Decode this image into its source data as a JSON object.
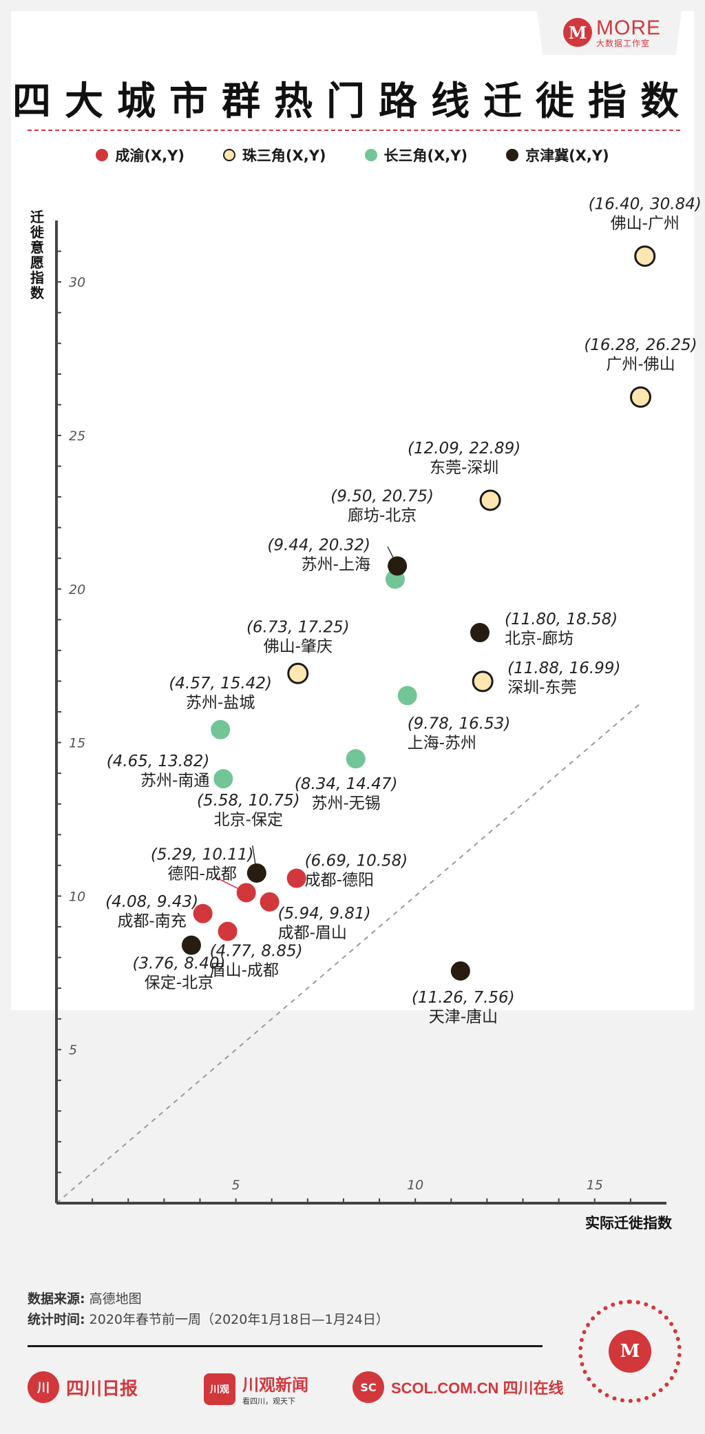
{
  "header": {
    "brand_name": "MORE",
    "brand_sub": "大数据工作室",
    "brand_logo_glyph": "M",
    "title": "四大城市群热门路线迁徙指数"
  },
  "legend": [
    {
      "label": "成渝(X,Y)",
      "color": "#d2373c"
    },
    {
      "label": "珠三角(X,Y)",
      "color": "#fde6b0"
    },
    {
      "label": "长三角(X,Y)",
      "color": "#72c596"
    },
    {
      "label": "京津冀(X,Y)",
      "color": "#261d10"
    }
  ],
  "chart_data": {
    "type": "scatter",
    "title": "四大城市群热门路线迁徙指数",
    "xlabel": "实际迁徙指数",
    "ylabel": "迁徙意愿指数",
    "xlim": [
      0,
      17
    ],
    "ylim": [
      0,
      32
    ],
    "xticks": [
      5,
      10,
      15
    ],
    "yticks": [
      5,
      10,
      15,
      20,
      25,
      30
    ],
    "reference_line": "y = x (dashed)",
    "series": [
      {
        "name": "成渝",
        "color": "#d2373c",
        "points": [
          {
            "route": "成都-德阳",
            "x": 6.69,
            "y": 10.58,
            "label": "(6.69, 10.58)"
          },
          {
            "route": "德阳-成都",
            "x": 5.29,
            "y": 10.11,
            "label": "(5.29, 10.11)"
          },
          {
            "route": "成都-眉山",
            "x": 5.94,
            "y": 9.81,
            "label": "(5.94, 9.81)"
          },
          {
            "route": "成都-南充",
            "x": 4.08,
            "y": 9.43,
            "label": "(4.08, 9.43)"
          },
          {
            "route": "眉山-成都",
            "x": 4.77,
            "y": 8.85,
            "label": "(4.77, 8.85)"
          }
        ]
      },
      {
        "name": "珠三角",
        "color": "#fde6b0",
        "points": [
          {
            "route": "佛山-广州",
            "x": 16.4,
            "y": 30.84,
            "label": "(16.40, 30.84)"
          },
          {
            "route": "广州-佛山",
            "x": 16.28,
            "y": 26.25,
            "label": "(16.28, 26.25)"
          },
          {
            "route": "东莞-深圳",
            "x": 12.09,
            "y": 22.89,
            "label": "(12.09, 22.89)"
          },
          {
            "route": "深圳-东莞",
            "x": 11.88,
            "y": 16.99,
            "label": "(11.88, 16.99)"
          },
          {
            "route": "佛山-肇庆",
            "x": 6.73,
            "y": 17.25,
            "label": "(6.73, 17.25)"
          }
        ]
      },
      {
        "name": "长三角",
        "color": "#72c596",
        "points": [
          {
            "route": "苏州-上海",
            "x": 9.44,
            "y": 20.32,
            "label": "(9.44, 20.32)"
          },
          {
            "route": "上海-苏州",
            "x": 9.78,
            "y": 16.53,
            "label": "(9.78, 16.53)"
          },
          {
            "route": "苏州-盐城",
            "x": 4.57,
            "y": 15.42,
            "label": "(4.57, 15.42)"
          },
          {
            "route": "苏州-无锡",
            "x": 8.34,
            "y": 14.47,
            "label": "(8.34, 14.47)"
          },
          {
            "route": "苏州-南通",
            "x": 4.65,
            "y": 13.82,
            "label": "(4.65, 13.82)"
          }
        ]
      },
      {
        "name": "京津冀",
        "color": "#261d10",
        "points": [
          {
            "route": "廊坊-北京",
            "x": 9.5,
            "y": 20.75,
            "label": "(9.50, 20.75)"
          },
          {
            "route": "北京-廊坊",
            "x": 11.8,
            "y": 18.58,
            "label": "(11.80, 18.58)"
          },
          {
            "route": "北京-保定",
            "x": 5.58,
            "y": 10.75,
            "label": "(5.58, 10.75)"
          },
          {
            "route": "保定-北京",
            "x": 3.76,
            "y": 8.4,
            "label": "(3.76, 8.40)"
          },
          {
            "route": "天津-唐山",
            "x": 11.26,
            "y": 7.56,
            "label": "(11.26, 7.56)"
          }
        ]
      }
    ]
  },
  "footer": {
    "source_label": "数据来源:",
    "source_value": "高德地图",
    "time_label": "统计时间:",
    "time_value": "2020年春节前一周（2020年1月18日—1月24日）",
    "partners": [
      {
        "name": "四川日报",
        "mark": "川"
      },
      {
        "name": "川观新闻",
        "mark": "川观",
        "tagline": "看四川，观天下"
      },
      {
        "name": "SCOL.COM.CN 四川在线",
        "mark": "SC"
      }
    ],
    "qr_glyph": "M"
  }
}
